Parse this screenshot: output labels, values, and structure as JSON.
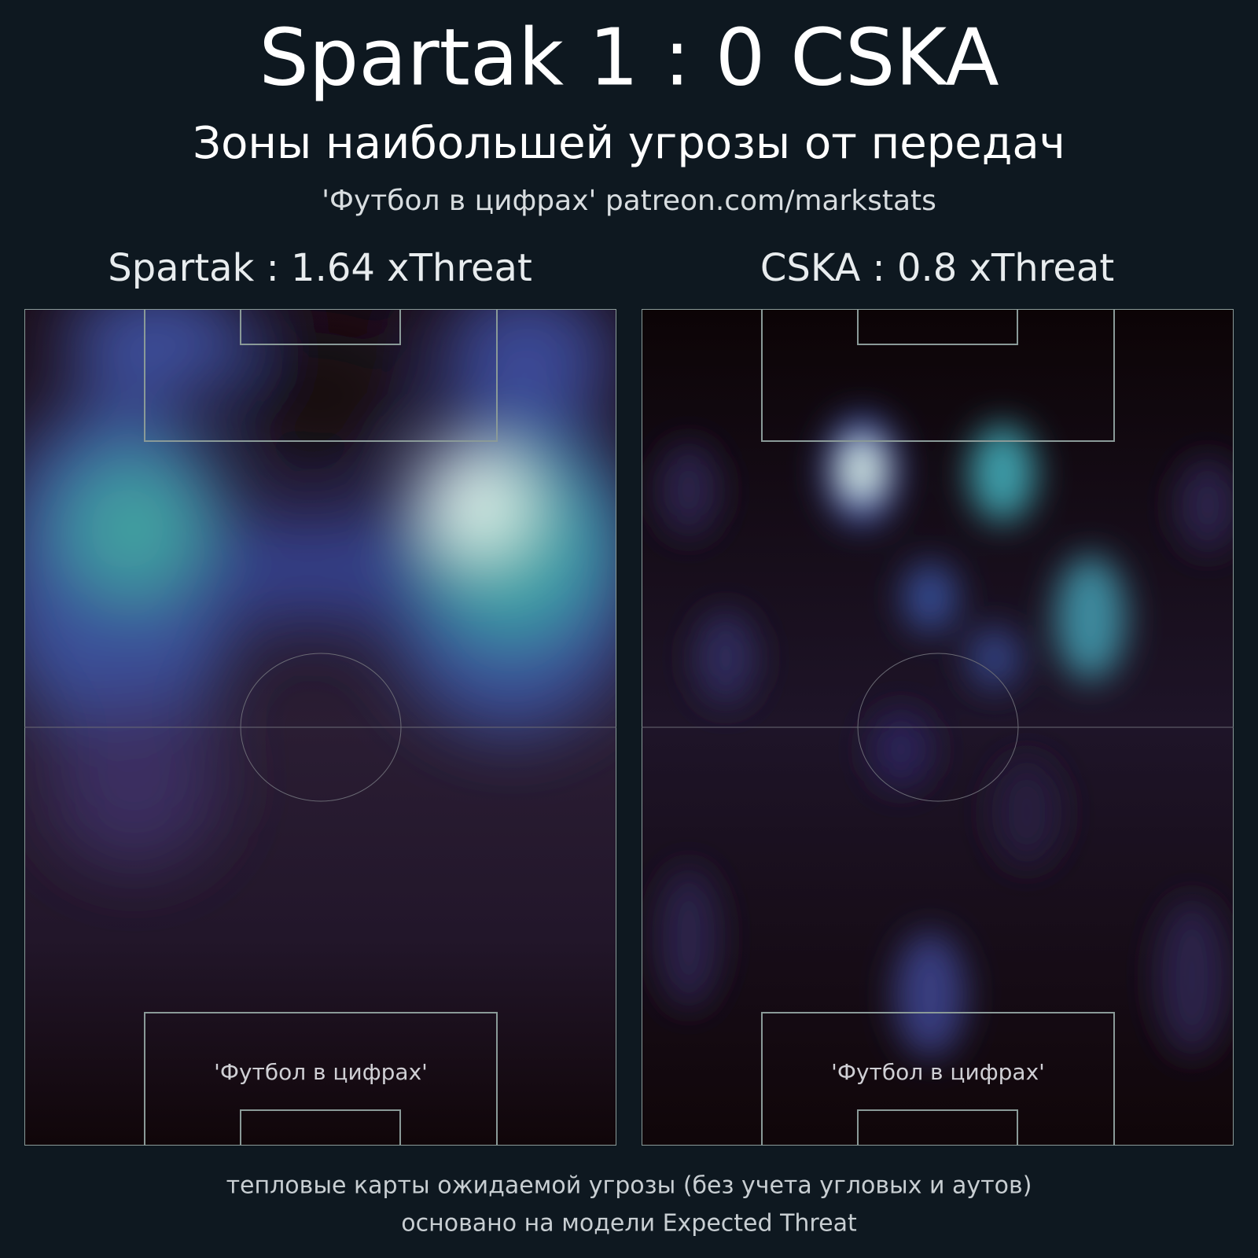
{
  "header": {
    "title": "Spartak 1 : 0 CSKA",
    "subtitle": "Зоны наибольшей угрозы от передач",
    "credit": "'Футбол в цифрах' patreon.com/markstats"
  },
  "panels": [
    {
      "title": "Spartak : 1.64 xThreat",
      "watermark": "'Футбол в цифрах'"
    },
    {
      "title": "CSKA : 0.8 xThreat",
      "watermark": "'Футбол в цифрах'"
    }
  ],
  "footer": {
    "lines": [
      "тепловые карты ожидаемой угрозы (без учета угловых и аутов)",
      "основано на модели Expected Threat"
    ]
  }
}
